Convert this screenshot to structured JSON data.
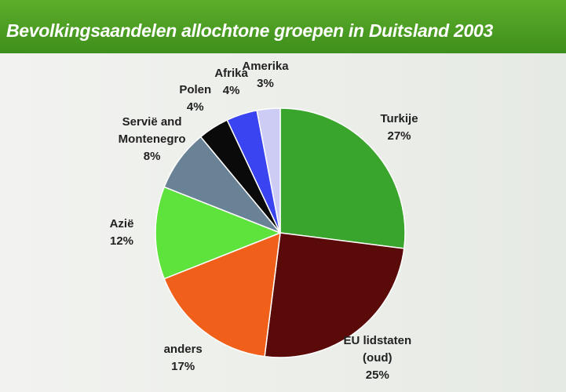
{
  "chart_data": {
    "type": "pie",
    "title": "Bevolkingsaandelen allochtone groepen in Duitsland 2003",
    "categories": [
      "Turkije",
      "EU lidstaten (oud)",
      "anders",
      "Azië",
      "Servië and Montenegro",
      "Polen",
      "Afrika",
      "Amerika"
    ],
    "values": [
      27,
      25,
      17,
      12,
      8,
      4,
      4,
      3
    ],
    "value_labels": [
      "27%",
      "25%",
      "17%",
      "12%",
      "8%",
      "4%",
      "4%",
      "3%"
    ],
    "colors": [
      "#3aa52c",
      "#5a0a08",
      "#f0601a",
      "#5ee23c",
      "#6a8296",
      "#0a0a0a",
      "#3a44f0",
      "#ccccf4"
    ]
  }
}
